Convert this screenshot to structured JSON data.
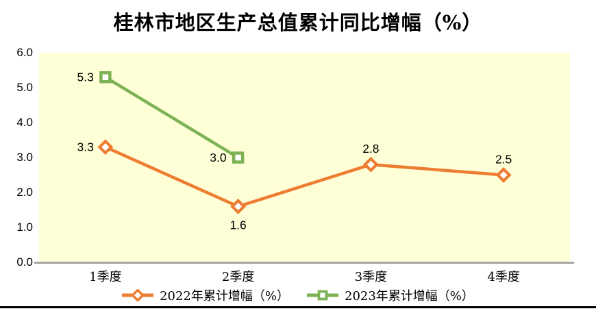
{
  "title": "桂林市地区生产总值累计同比增幅（%）",
  "chart_data": {
    "type": "line",
    "categories": [
      "1季度",
      "2季度",
      "3季度",
      "4季度"
    ],
    "series": [
      {
        "name": "2022年累计增幅（%）",
        "values": [
          3.3,
          1.6,
          2.8,
          2.5
        ],
        "color": "#ED7D31",
        "marker": "diamond",
        "label_positions": [
          "left",
          "below",
          "above",
          "above"
        ]
      },
      {
        "name": "2023年累计增幅（%）",
        "values": [
          5.3,
          3.0
        ],
        "color": "#7CB254",
        "marker": "square",
        "label_positions": [
          "left",
          "left"
        ]
      }
    ],
    "ylim": [
      0,
      6
    ],
    "ytick_step": 1,
    "ytick_labels": [
      "0.0",
      "1.0",
      "2.0",
      "3.0",
      "4.0",
      "5.0",
      "6.0"
    ],
    "grid": false,
    "legend_position": "bottom",
    "plot_bg": "#FFFFD7",
    "axis_line_color": "#A6A6A6",
    "text_color": "#000000"
  }
}
